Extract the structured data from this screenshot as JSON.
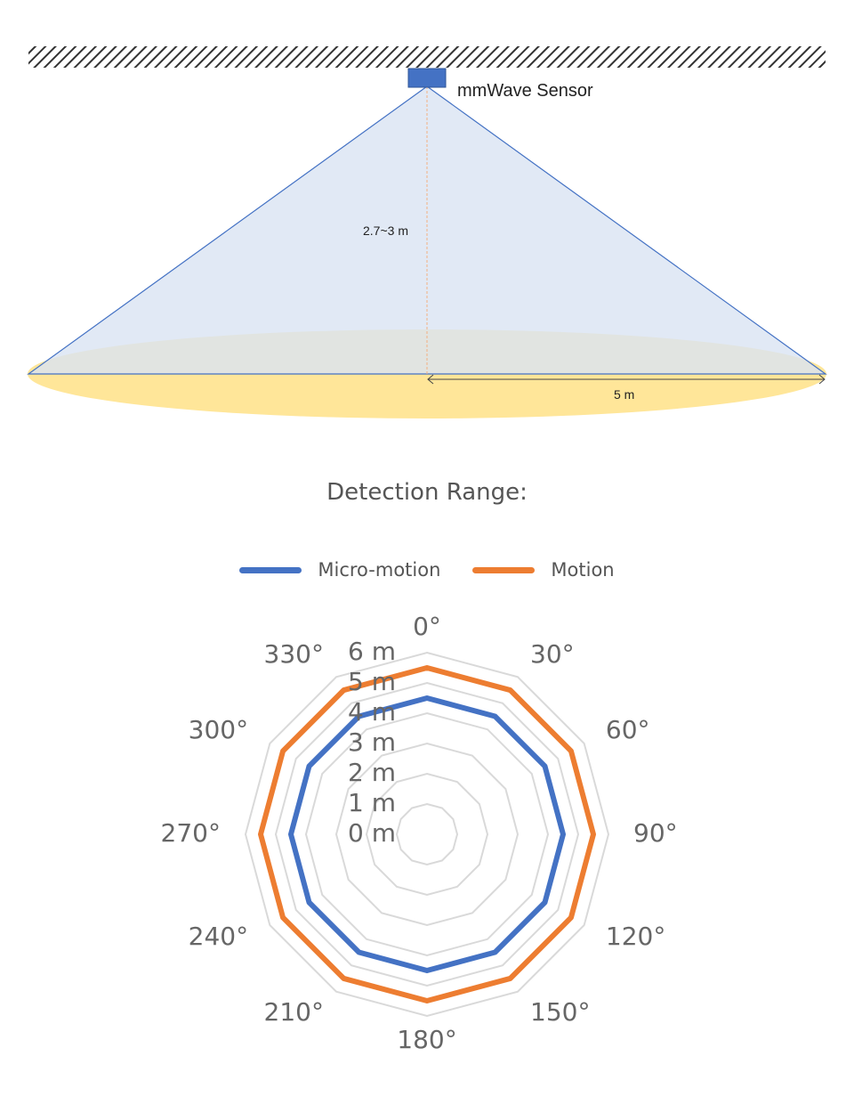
{
  "diagram": {
    "sensor_label": "mmWave Sensor",
    "height_label": "2.7~3 m",
    "radius_label": "5 m",
    "colors": {
      "sensor": "#4472C4",
      "cone_fill": "#DAE3F3",
      "cone_edge": "#4472C4",
      "floor": "#FFE699",
      "height_line": "#F4B183"
    }
  },
  "title": "Detection Range:",
  "chart_data": {
    "type": "radar",
    "axes": [
      "0°",
      "30°",
      "60°",
      "90°",
      "120°",
      "150°",
      "180°",
      "210°",
      "240°",
      "270°",
      "300°",
      "330°"
    ],
    "rticks": [
      "0 m",
      "1 m",
      "2 m",
      "3 m",
      "4 m",
      "5 m",
      "6 m"
    ],
    "rlim": [
      0,
      6
    ],
    "grid": true,
    "legend_position": "top",
    "series": [
      {
        "name": "Micro-motion",
        "color": "#4472C4",
        "values": [
          4.5,
          4.5,
          4.5,
          4.5,
          4.5,
          4.5,
          4.5,
          4.5,
          4.5,
          4.5,
          4.5,
          4.5
        ]
      },
      {
        "name": "Motion",
        "color": "#ED7D31",
        "values": [
          5.5,
          5.5,
          5.5,
          5.5,
          5.5,
          5.5,
          5.5,
          5.5,
          5.5,
          5.5,
          5.5,
          5.5
        ]
      }
    ]
  }
}
